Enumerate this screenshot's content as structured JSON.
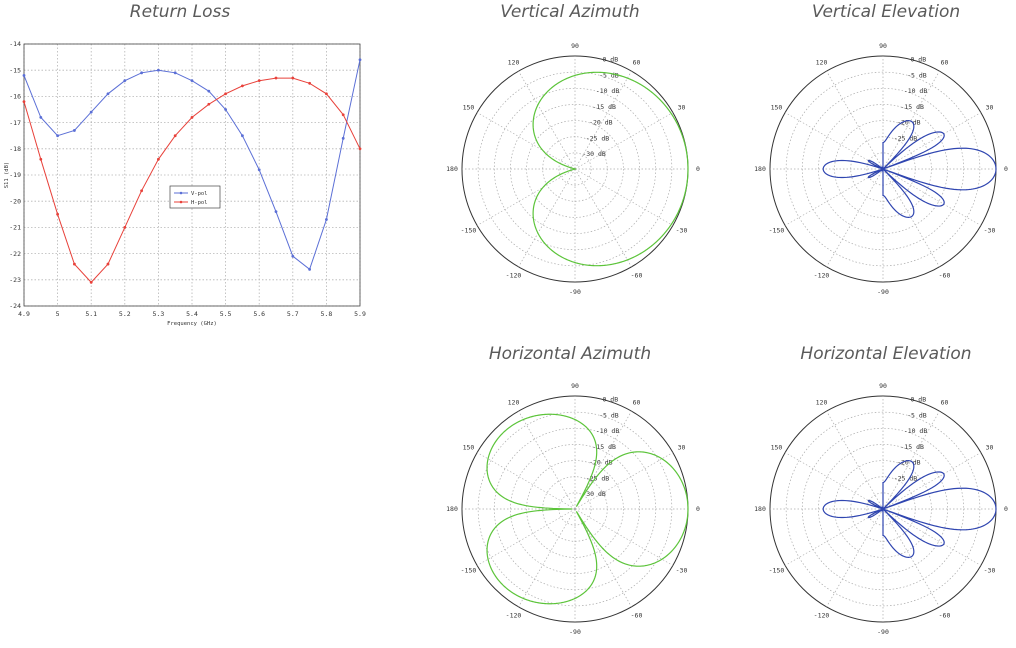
{
  "chart_data": [
    {
      "id": "return-loss",
      "type": "line",
      "title": "Return Loss",
      "xlabel": "Frequency (GHz)",
      "ylabel": "S11 (dB)",
      "xlim": [
        4.9,
        5.9
      ],
      "ylim": [
        -24,
        -14
      ],
      "xticks": [
        "4.9",
        "5",
        "5.1",
        "5.2",
        "5.3",
        "5.4",
        "5.5",
        "5.6",
        "5.7",
        "5.8",
        "5.9"
      ],
      "yticks": [
        "-14",
        "-15",
        "-16",
        "-17",
        "-18",
        "-19",
        "-20",
        "-21",
        "-22",
        "-23",
        "-24"
      ],
      "grid": true,
      "legend": "center",
      "x": [
        4.9,
        4.95,
        5.0,
        5.05,
        5.1,
        5.15,
        5.2,
        5.25,
        5.3,
        5.35,
        5.4,
        5.45,
        5.5,
        5.55,
        5.6,
        5.65,
        5.7,
        5.75,
        5.8,
        5.85,
        5.9
      ],
      "series": [
        {
          "name": "V-pol",
          "color": "#5b6fd6",
          "values": [
            -15.2,
            -16.8,
            -17.5,
            -17.3,
            -16.6,
            -15.9,
            -15.4,
            -15.1,
            -15.0,
            -15.1,
            -15.4,
            -15.8,
            -16.5,
            -17.5,
            -18.8,
            -20.4,
            -22.1,
            -22.6,
            -20.7,
            -17.6,
            -14.6
          ]
        },
        {
          "name": "H-pol",
          "color": "#e8413a",
          "values": [
            -16.2,
            -18.4,
            -20.5,
            -22.4,
            -23.1,
            -22.4,
            -21.0,
            -19.6,
            -18.4,
            -17.5,
            -16.8,
            -16.3,
            -15.9,
            -15.6,
            -15.4,
            -15.3,
            -15.3,
            -15.5,
            -15.9,
            -16.7,
            -18.0
          ]
        }
      ]
    },
    {
      "id": "vertical-azimuth",
      "type": "polar",
      "title": "Vertical Azimuth",
      "color": "#5cc43a",
      "radial_ticks": [
        "0 dB",
        "-5 dB",
        "-10 dB",
        "-15 dB",
        "-20 dB",
        "-25 dB",
        "-30 dB"
      ],
      "angle_labels": [
        "0",
        "30",
        "60",
        "90",
        "120",
        "150",
        "180",
        "-150",
        "-120",
        "-90",
        "-60",
        "-30"
      ],
      "rmin_db": -35,
      "pattern": "cardioid"
    },
    {
      "id": "vertical-elevation",
      "type": "polar",
      "title": "Vertical Elevation",
      "color": "#2f45b0",
      "radial_ticks": [
        "0 dB",
        "-5 dB",
        "-10 dB",
        "-15 dB",
        "-20 dB",
        "-25 dB"
      ],
      "angle_labels": [
        "0",
        "30",
        "60",
        "90",
        "120",
        "150",
        "180",
        "-150",
        "-120",
        "-90",
        "-60",
        "-30"
      ],
      "rmin_db": -35,
      "pattern": "narrow-beam"
    },
    {
      "id": "horizontal-azimuth",
      "type": "polar",
      "title": "Horizontal Azimuth",
      "color": "#5cc43a",
      "radial_ticks": [
        "0 dB",
        "-5 dB",
        "-10 dB",
        "-15 dB",
        "-20 dB",
        "-25 dB",
        "-30 dB"
      ],
      "angle_labels": [
        "0",
        "30",
        "60",
        "90",
        "120",
        "150",
        "180",
        "-150",
        "-120",
        "-90",
        "-60",
        "-30"
      ],
      "rmin_db": -35,
      "pattern": "four-lobe"
    },
    {
      "id": "horizontal-elevation",
      "type": "polar",
      "title": "Horizontal Elevation",
      "color": "#2f45b0",
      "radial_ticks": [
        "0 dB",
        "-5 dB",
        "-10 dB",
        "-15 dB",
        "-20 dB",
        "-25 dB"
      ],
      "angle_labels": [
        "0",
        "30",
        "60",
        "90",
        "120",
        "150",
        "180",
        "-150",
        "-120",
        "-90",
        "-60",
        "-30"
      ],
      "rmin_db": -35,
      "pattern": "narrow-beam"
    }
  ]
}
